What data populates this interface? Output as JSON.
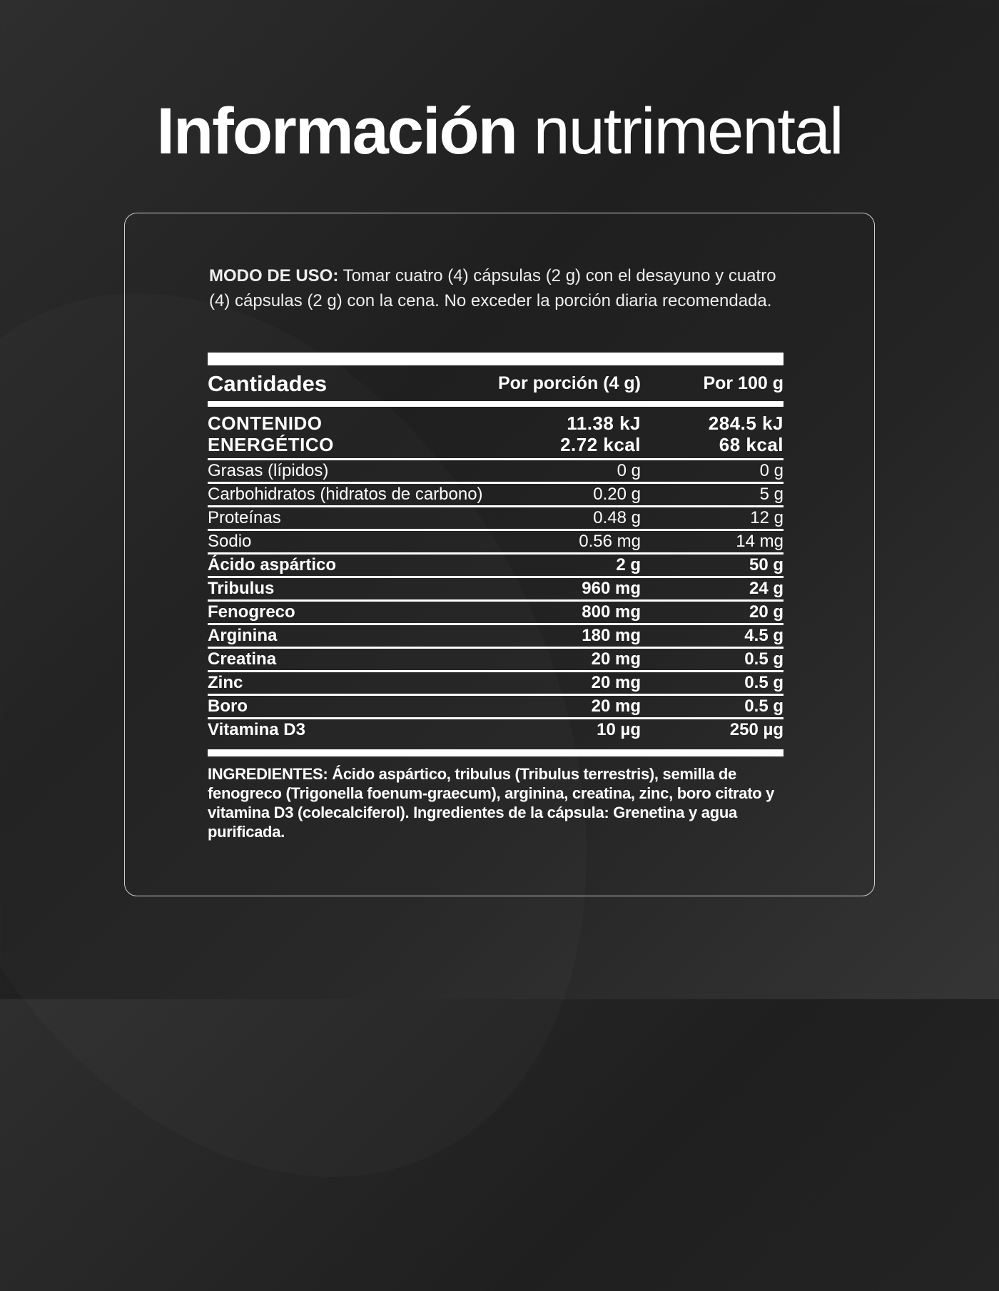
{
  "title": {
    "bold": "Información",
    "light": "nutrimental"
  },
  "usage": {
    "label": "MODO DE USO:",
    "text": " Tomar cuatro (4) cápsulas (2 g) con el desayuno y cuatro (4) cápsulas (2 g) con la cena. No exceder la porción diaria recomendada."
  },
  "table": {
    "headers": [
      "Cantidades",
      "Por porción (4 g)",
      "Por 100 g"
    ],
    "energy": {
      "label1": "CONTENIDO",
      "label2": "ENERGÉTICO",
      "portion_kj": "11.38 kJ",
      "portion_kcal": "2.72 kcal",
      "per100_kj": "284.5 kJ",
      "per100_kcal": "68 kcal"
    },
    "rows": [
      {
        "name": "Grasas (lípidos)",
        "portion": "0 g",
        "per100": "0 g",
        "bold": false
      },
      {
        "name": "Carbohidratos (hidratos de carbono)",
        "portion": "0.20 g",
        "per100": "5 g",
        "bold": false
      },
      {
        "name": "Proteínas",
        "portion": "0.48 g",
        "per100": "12 g",
        "bold": false
      },
      {
        "name": "Sodio",
        "portion": "0.56 mg",
        "per100": "14 mg",
        "bold": false
      },
      {
        "name": "Ácido aspártico",
        "portion": "2 g",
        "per100": "50 g",
        "bold": true
      },
      {
        "name": "Tribulus",
        "portion": "960 mg",
        "per100": "24 g",
        "bold": true
      },
      {
        "name": "Fenogreco",
        "portion": "800 mg",
        "per100": "20 g",
        "bold": true
      },
      {
        "name": "Arginina",
        "portion": "180 mg",
        "per100": "4.5 g",
        "bold": true
      },
      {
        "name": "Creatina",
        "portion": "20 mg",
        "per100": "0.5 g",
        "bold": true
      },
      {
        "name": "Zinc",
        "portion": "20 mg",
        "per100": "0.5 g",
        "bold": true
      },
      {
        "name": "Boro",
        "portion": "20 mg",
        "per100": "0.5 g",
        "bold": true
      },
      {
        "name": "Vitamina D3",
        "portion": "10 µg",
        "per100": "250 µg",
        "bold": true
      }
    ]
  },
  "ingredients": "INGREDIENTES: Ácido aspártico, tribulus (Tribulus terrestris), semilla de fenogreco (Trigonella foenum-graecum), arginina, creatina, zinc, boro citrato y vitamina D3 (colecalciferol). Ingredientes de la cápsula: Grenetina y agua purificada."
}
